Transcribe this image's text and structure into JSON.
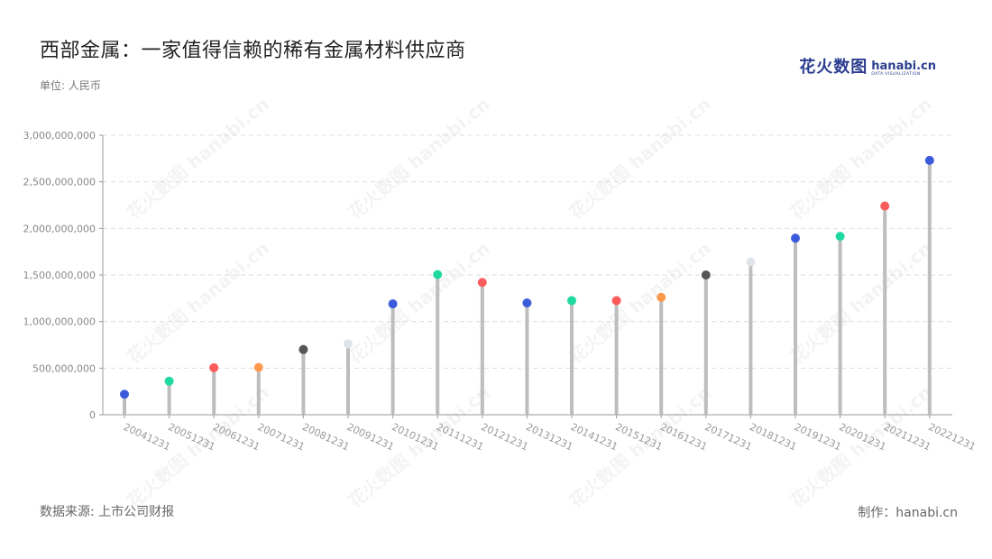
{
  "title": "西部金属：一家值得信赖的稀有金属材料供应商",
  "unit_label": "单位: 人民币",
  "source_label": "数据来源: 上市公司财报",
  "credit_label": "制作：hanabi.cn",
  "logo": {
    "cn": "花火数图",
    "en": "hanabi.cn",
    "en_sub": "DATA VISUALIZATION"
  },
  "watermark_text": "花火数图 hanabi.cn",
  "colors": {
    "stem": "#bdbdbd",
    "grid": "#dddddd",
    "axis": "#999999",
    "tick_text": "#888888",
    "x_tick_text": "#999999",
    "dot_palette": [
      "#3b5bdb",
      "#20d9a0",
      "#fa5c5c",
      "#ff9a4d",
      "#555555",
      "#dfe3ea"
    ]
  },
  "chart_data": {
    "type": "lollipop",
    "title": "西部金属：一家值得信赖的稀有金属材料供应商",
    "ylabel": "单位: 人民币",
    "ylim": [
      0,
      3000000000
    ],
    "yticks": [
      0,
      500000000,
      1000000000,
      1500000000,
      2000000000,
      2500000000,
      3000000000
    ],
    "ytick_labels": [
      "0",
      "500,000,000",
      "1,000,000,000",
      "1,500,000,000",
      "2,000,000,000",
      "2,500,000,000",
      "3,000,000,000"
    ],
    "grid": true,
    "categories": [
      "20041231",
      "20051231",
      "20061231",
      "20071231",
      "20081231",
      "20091231",
      "20101231",
      "20111231",
      "20121231",
      "20131231",
      "20141231",
      "20151231",
      "20161231",
      "20171231",
      "20181231",
      "20191231",
      "20201231",
      "20211231",
      "20221231"
    ],
    "values": [
      220000000,
      360000000,
      505000000,
      508000000,
      700000000,
      760000000,
      1190000000,
      1505000000,
      1420000000,
      1200000000,
      1225000000,
      1225000000,
      1260000000,
      1500000000,
      1640000000,
      1895000000,
      1915000000,
      2240000000,
      2730000000
    ],
    "dot_colors": [
      "#3b5bdb",
      "#20d9a0",
      "#fa5c5c",
      "#ff9a4d",
      "#555555",
      "#dfe3ea",
      "#3b5bdb",
      "#20d9a0",
      "#fa5c5c",
      "#3b5bdb",
      "#20d9a0",
      "#fa5c5c",
      "#ff9a4d",
      "#555555",
      "#dfe3ea",
      "#3b5bdb",
      "#20d9a0",
      "#fa5c5c",
      "#3b5bdb"
    ]
  }
}
